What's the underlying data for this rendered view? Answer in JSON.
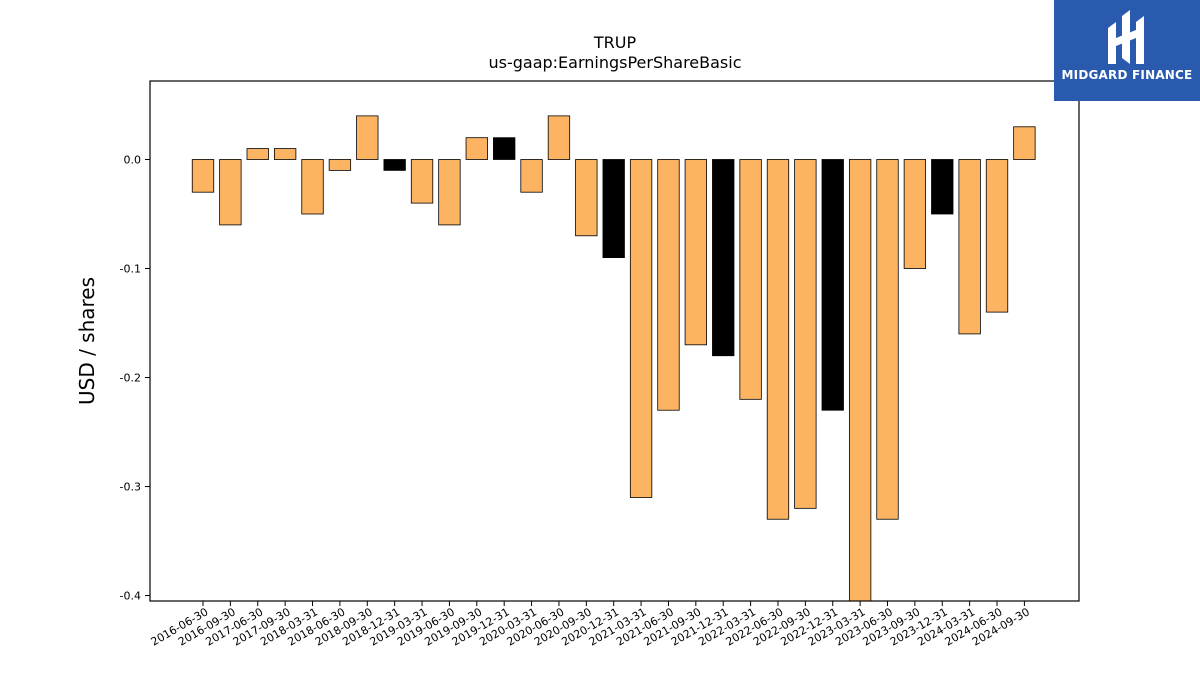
{
  "chart_data": {
    "type": "bar",
    "title": "TRUP",
    "subtitle": "us-gaap:EarningsPerShareBasic",
    "xlabel": "",
    "ylabel": "USD / shares",
    "ylim": [
      -0.405,
      0.072
    ],
    "yticks": [
      "-0.4",
      "-0.3",
      "-0.2",
      "-0.1",
      "0.0"
    ],
    "grid": false,
    "colors": {
      "default": "#fdb462",
      "highlight": "#000000",
      "edge": "#000000"
    },
    "categories": [
      "2016-06-30",
      "2016-09-30",
      "2017-06-30",
      "2017-09-30",
      "2018-03-31",
      "2018-06-30",
      "2018-09-30",
      "2018-12-31",
      "2019-03-31",
      "2019-06-30",
      "2019-09-30",
      "2019-12-31",
      "2020-03-31",
      "2020-06-30",
      "2020-09-30",
      "2020-12-31",
      "2021-03-31",
      "2021-06-30",
      "2021-09-30",
      "2021-12-31",
      "2022-03-31",
      "2022-06-30",
      "2022-09-30",
      "2022-12-31",
      "2023-03-31",
      "2023-06-30",
      "2023-09-30",
      "2023-12-31",
      "2024-03-31",
      "2024-06-30",
      "2024-09-30"
    ],
    "values": [
      -0.03,
      -0.06,
      0.01,
      0.01,
      -0.05,
      -0.01,
      0.04,
      -0.01,
      -0.04,
      -0.06,
      0.02,
      0.02,
      -0.03,
      0.04,
      -0.07,
      -0.09,
      -0.31,
      -0.23,
      -0.17,
      -0.18,
      -0.22,
      -0.33,
      -0.32,
      -0.23,
      -0.41,
      -0.33,
      -0.1,
      -0.05,
      -0.16,
      -0.14,
      0.03
    ],
    "highlight": [
      false,
      false,
      false,
      false,
      false,
      false,
      false,
      true,
      false,
      false,
      false,
      true,
      false,
      false,
      false,
      true,
      false,
      false,
      false,
      true,
      false,
      false,
      false,
      true,
      false,
      false,
      false,
      true,
      false,
      false,
      false
    ]
  },
  "logo": {
    "text": "MIDGARD FINANCE",
    "icon": "midgard-logo-icon"
  }
}
